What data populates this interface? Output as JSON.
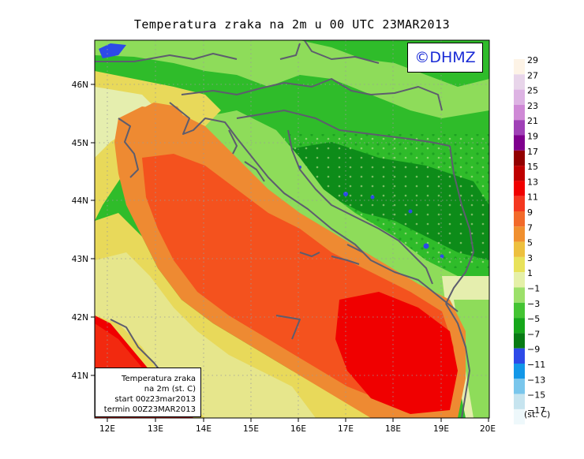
{
  "title": "Temperatura zraka na 2m u 00 UTC 23MAR2013",
  "logo": "©DHMZ",
  "info": {
    "line1": "Temperatura zraka",
    "line2": "na 2m (st. C)",
    "line3": "start 00z23mar2013",
    "line4": "termin 00Z23MAR2013"
  },
  "axes": {
    "x_ticks": [
      "12E",
      "13E",
      "14E",
      "15E",
      "16E",
      "17E",
      "18E",
      "19E",
      "20E"
    ],
    "y_ticks": [
      "46N",
      "45N",
      "44N",
      "43N",
      "42N",
      "41N"
    ]
  },
  "scale": {
    "unit": "(st. C)",
    "labels": [
      "29",
      "27",
      "25",
      "23",
      "21",
      "19",
      "17",
      "15",
      "13",
      "11",
      "9",
      "7",
      "5",
      "3",
      "1",
      "−1",
      "−3",
      "−5",
      "−7",
      "−9",
      "−11",
      "−13",
      "−15",
      "−17"
    ],
    "colors": [
      "#fdf3e6",
      "#e8d5ea",
      "#ddb3e3",
      "#cf89d6",
      "#a041b7",
      "#7f008e",
      "#920000",
      "#bf0000",
      "#f00000",
      "#f43820",
      "#f26a2a",
      "#f0902f",
      "#edc03e",
      "#e8e25a",
      "#e5f0a8",
      "#9ce06a",
      "#44c433",
      "#16a71a",
      "#087b14",
      "#2d4ae8",
      "#1297e8",
      "#79c6ec",
      "#c6e4ef",
      "#eef8fb"
    ]
  },
  "map_colors": {
    "sea_warm": "#f4521e",
    "sea_warmer": "#f00000",
    "coast_orange": "#ee8a32",
    "land_yellow": "#e8d95a",
    "land_light": "#e5eeae",
    "green_light": "#8edc5a",
    "green_mid": "#2fbc2a",
    "green_dark": "#0d8c19",
    "cold_blue": "#2d4ae8",
    "border": "#5d5d6e"
  }
}
